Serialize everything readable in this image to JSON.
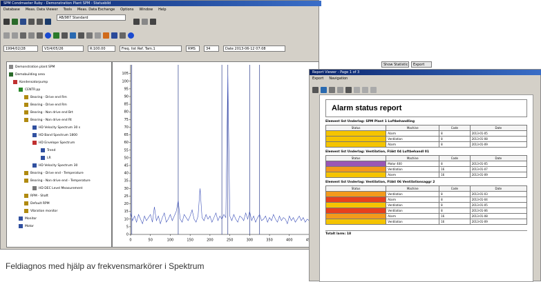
{
  "main_window": {
    "title": "SPM Condmaster Ruby - Demonstration Plant SPM - Statusbild",
    "menu": [
      "Database",
      "Meas. Data Viewer",
      "Tools",
      "Meas. Data Exchange",
      "Options",
      "Window",
      "Help"
    ],
    "dropdown": "AB/987 Standard",
    "fields": [
      "1994/02/28",
      "V3/4/05/26",
      "R:100.00",
      "Freq. list Ref. Tam.1",
      "RMS",
      "34",
      "Date 2013-06-12 07:08"
    ],
    "side_buttons": [
      "Show Statistic",
      "Export"
    ]
  },
  "tree": {
    "items": [
      "Demonstration plant SPM",
      "Demobuilding area",
      "Kondensatorpump",
      "CENTR.pp",
      "Bearing - Drive end Rm",
      "Bearing - Drive end Rm",
      "Bearing - Non drive end Brt",
      "Bearing - Non drive end Rt",
      "HD Velocity Spectrum 30 s",
      "HD Band Spectrum 1800",
      "HD Envelope Spectrum",
      "Trend",
      "LR",
      "HD Velocity Spectrum 30",
      "Bearing - Drive end - Temperature",
      "Bearing - Non drive end - Temperature",
      "HD DEC Level Measurement",
      "RPM - Shaft",
      "Default RPM",
      "Vibration monitor",
      "Monitor",
      "Motor"
    ]
  },
  "spectrum": {
    "type": "line",
    "color": "#3b4fb8",
    "xlim": [
      0,
      470
    ],
    "ylim": [
      0,
      108
    ],
    "xticks": [
      0,
      50,
      100,
      150,
      200,
      250,
      300,
      350,
      400,
      450
    ],
    "yticks": [
      0,
      5,
      10,
      15,
      20,
      25,
      30,
      35,
      40,
      45,
      50,
      55,
      60,
      65,
      70,
      75,
      80,
      85,
      90,
      95,
      100,
      105
    ],
    "x": [
      0,
      5,
      10,
      15,
      20,
      25,
      30,
      35,
      40,
      45,
      50,
      55,
      60,
      65,
      70,
      75,
      80,
      85,
      90,
      95,
      100,
      105,
      110,
      115,
      120,
      125,
      130,
      135,
      140,
      145,
      150,
      155,
      160,
      165,
      170,
      175,
      180,
      185,
      190,
      195,
      200,
      205,
      210,
      215,
      220,
      225,
      230,
      235,
      240,
      245,
      250,
      255,
      260,
      265,
      270,
      275,
      280,
      285,
      290,
      295,
      300,
      305,
      310,
      315,
      320,
      325,
      330,
      335,
      340,
      345,
      350,
      355,
      360,
      365,
      370,
      375,
      380,
      385,
      390,
      395,
      400,
      405,
      410,
      415,
      420,
      425,
      430,
      435,
      440,
      445,
      450
    ],
    "values": [
      14,
      9,
      12,
      8,
      13,
      10,
      7,
      12,
      9,
      11,
      13,
      8,
      18,
      9,
      12,
      7,
      11,
      14,
      8,
      10,
      13,
      9,
      12,
      15,
      22,
      10,
      8,
      13,
      11,
      9,
      12,
      16,
      10,
      8,
      12,
      30,
      11,
      9,
      13,
      10,
      12,
      8,
      11,
      14,
      9,
      12,
      10,
      13,
      11,
      104,
      12,
      9,
      13,
      10,
      8,
      12,
      11,
      9,
      14,
      10,
      15,
      9,
      12,
      8,
      11,
      13,
      9,
      10,
      12,
      8,
      11,
      9,
      13,
      10,
      8,
      12,
      9,
      11,
      10,
      7,
      12,
      9,
      11,
      8,
      10,
      12,
      9,
      11,
      8,
      10,
      9
    ],
    "markers": [
      3,
      120,
      230,
      245,
      300,
      325
    ],
    "marker_color": "#2a3a8a"
  },
  "report": {
    "window_title": "Report Viewer - Page 1 of 3",
    "menu": [
      "Export",
      "Navigation"
    ],
    "title": "Alarm status report",
    "sections": [
      {
        "heading": "Element list Underlag: SPM Plant 1 Luftbehandling",
        "columns": [
          "Status",
          "Machine",
          "Code",
          "Date"
        ],
        "rows": [
          {
            "color": "#f5c400",
            "cells": [
              "Alarm",
              "8",
              "2013-01-05"
            ]
          },
          {
            "color": "#f5c400",
            "cells": [
              "Ventilation",
              "8",
              "2013-01-08"
            ]
          },
          {
            "color": "#f5c400",
            "cells": [
              "Alarm",
              "8",
              "2013-01-09"
            ]
          }
        ]
      },
      {
        "heading": "Element list Underlag: Ventilation, Fläkt 04 Luftbehandl 01",
        "columns": [
          "Status",
          "Machine",
          "Code",
          "Date"
        ],
        "rows": [
          {
            "color": "#9a57b5",
            "cells": [
              "Motor 400",
              "8",
              "2013-01-05"
            ]
          },
          {
            "color": "#f39a1c",
            "cells": [
              "Ventilation",
              "16",
              "2013-01-07"
            ]
          },
          {
            "color": "#f5c400",
            "cells": [
              "Alarm",
              "16",
              "2013-01-09"
            ]
          }
        ]
      },
      {
        "heading": "Element list Underlag: Ventilation, Fläkt 06 Ventilationsaggr 2",
        "columns": [
          "Status",
          "Machine",
          "Code",
          "Date"
        ],
        "rows": [
          {
            "color": "#f39a1c",
            "cells": [
              "Ventilation",
              "8",
              "2013-01-03"
            ]
          },
          {
            "color": "#e8401c",
            "cells": [
              "Alarm",
              "8",
              "2013-01-04"
            ]
          },
          {
            "color": "#f5c400",
            "cells": [
              "Ventilation",
              "8",
              "2013-01-05"
            ]
          },
          {
            "color": "#e8401c",
            "cells": [
              "Ventilation",
              "8",
              "2013-01-06"
            ]
          },
          {
            "color": "#f39a1c",
            "cells": [
              "Alarm",
              "16",
              "2013-01-08"
            ]
          },
          {
            "color": "#f5c400",
            "cells": [
              "Ventilation",
              "16",
              "2013-01-09"
            ]
          }
        ]
      }
    ],
    "total": "Totalt larm: 18"
  },
  "caption": "Feldiagnos med hjälp av frekvensmarkörer i Spektrum"
}
